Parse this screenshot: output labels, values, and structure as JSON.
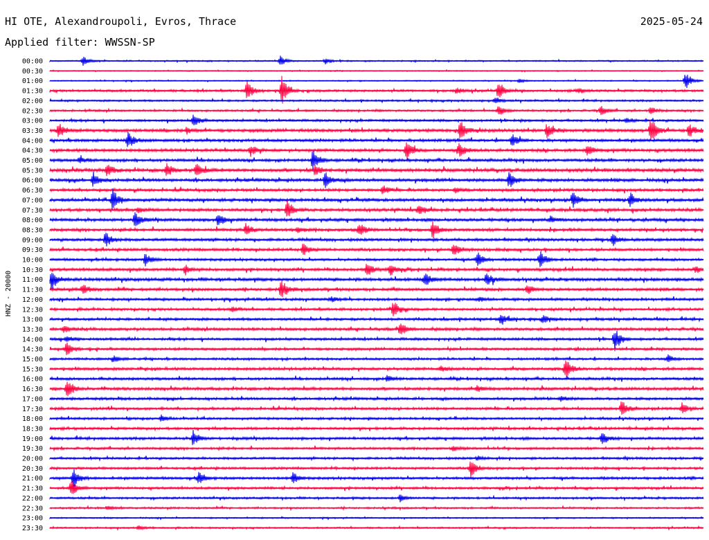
{
  "header": {
    "title": "HI OTE, Alexandroupoli, Evros, Thrace",
    "filter": "Applied filter: WWSSN-SP",
    "date": "2025-05-24"
  },
  "chart_data": {
    "type": "line",
    "title": "HI OTE, Alexandroupoli, Evros, Thrace",
    "subtitle": "Applied filter: WWSSN-SP",
    "date": "2025-05-24",
    "ylabel": "HNZ - 20000",
    "row_labels": [
      "00:00",
      "00:30",
      "01:00",
      "01:30",
      "02:00",
      "02:30",
      "03:00",
      "03:30",
      "04:00",
      "04:30",
      "05:00",
      "05:30",
      "06:00",
      "06:30",
      "07:00",
      "07:30",
      "08:00",
      "08:30",
      "09:00",
      "09:30",
      "10:00",
      "10:30",
      "11:00",
      "11:30",
      "12:00",
      "12:30",
      "13:00",
      "13:30",
      "14:00",
      "14:30",
      "15:00",
      "15:30",
      "16:00",
      "16:30",
      "17:00",
      "17:30",
      "18:00",
      "18:30",
      "19:00",
      "19:30",
      "20:00",
      "20:30",
      "21:00",
      "21:30",
      "22:00",
      "22:30",
      "23:00",
      "23:30"
    ],
    "colors": [
      "#0000ee",
      "#ff0040"
    ],
    "noise": [
      0.25,
      0.18,
      0.2,
      0.45,
      0.35,
      0.4,
      0.45,
      0.6,
      0.55,
      0.6,
      0.55,
      0.65,
      0.6,
      0.55,
      0.6,
      0.6,
      0.6,
      0.55,
      0.55,
      0.55,
      0.5,
      0.55,
      0.6,
      0.55,
      0.5,
      0.5,
      0.5,
      0.55,
      0.5,
      0.5,
      0.45,
      0.55,
      0.5,
      0.55,
      0.5,
      0.5,
      0.45,
      0.5,
      0.5,
      0.45,
      0.45,
      0.45,
      0.5,
      0.45,
      0.4,
      0.35,
      0.25,
      0.3
    ],
    "events": [
      [
        [
          120,
          1.0
        ],
        [
          405,
          1.2
        ],
        [
          470,
          0.6
        ]
      ],
      [],
      [
        [
          990,
          2.0
        ],
        [
          750,
          0.4
        ]
      ],
      [
        [
          357,
          2.2
        ],
        [
          407,
          3.2
        ],
        [
          720,
          1.8
        ],
        [
          660,
          0.6
        ],
        [
          835,
          0.6
        ]
      ],
      [
        [
          715,
          0.6
        ]
      ],
      [
        [
          720,
          1.2
        ],
        [
          868,
          1.0
        ],
        [
          940,
          0.8
        ]
      ],
      [
        [
          280,
          1.5
        ],
        [
          905,
          0.5
        ]
      ],
      [
        [
          85,
          1.8
        ],
        [
          665,
          2.2
        ],
        [
          790,
          1.5
        ],
        [
          940,
          3.0
        ],
        [
          995,
          1.5
        ],
        [
          270,
          0.6
        ]
      ],
      [
        [
          185,
          1.8
        ],
        [
          740,
          1.5
        ]
      ],
      [
        [
          362,
          1.2
        ],
        [
          587,
          2.0
        ],
        [
          663,
          1.5
        ],
        [
          848,
          1.2
        ]
      ],
      [
        [
          452,
          2.2
        ],
        [
          115,
          0.6
        ]
      ],
      [
        [
          155,
          1.3
        ],
        [
          240,
          1.5
        ],
        [
          284,
          1.5
        ],
        [
          455,
          1.2
        ]
      ],
      [
        [
          135,
          1.6
        ],
        [
          470,
          1.8
        ],
        [
          735,
          2.0
        ]
      ],
      [
        [
          553,
          1.0
        ],
        [
          658,
          0.5
        ]
      ],
      [
        [
          163,
          2.5
        ],
        [
          828,
          1.8
        ],
        [
          910,
          1.5
        ]
      ],
      [
        [
          415,
          2.2
        ],
        [
          605,
          1.2
        ],
        [
          200,
          0.6
        ]
      ],
      [
        [
          195,
          1.6
        ],
        [
          315,
          1.4
        ],
        [
          795,
          0.6
        ]
      ],
      [
        [
          355,
          1.5
        ],
        [
          519,
          1.5
        ],
        [
          625,
          1.8
        ],
        [
          430,
          0.6
        ]
      ],
      [
        [
          153,
          1.8
        ],
        [
          885,
          1.3
        ]
      ],
      [
        [
          438,
          1.4
        ],
        [
          655,
          1.4
        ]
      ],
      [
        [
          210,
          1.4
        ],
        [
          690,
          1.6
        ],
        [
          780,
          2.2
        ]
      ],
      [
        [
          268,
          1.0
        ],
        [
          530,
          1.5
        ],
        [
          564,
          1.3
        ],
        [
          1005,
          0.8
        ]
      ],
      [
        [
          74,
          2.2
        ],
        [
          614,
          1.5
        ],
        [
          703,
          1.5
        ]
      ],
      [
        [
          120,
          1.3
        ],
        [
          406,
          2.2
        ],
        [
          762,
          1.0
        ]
      ],
      [
        [
          478,
          0.6
        ],
        [
          692,
          0.6
        ]
      ],
      [
        [
          568,
          2.0
        ],
        [
          335,
          0.6
        ]
      ],
      [
        [
          723,
          1.4
        ],
        [
          785,
          0.8
        ]
      ],
      [
        [
          578,
          1.5
        ],
        [
          92,
          0.8
        ]
      ],
      [
        [
          888,
          2.5
        ],
        [
          96,
          0.6
        ]
      ],
      [
        [
          96,
          1.5
        ]
      ],
      [
        [
          165,
          0.8
        ],
        [
          965,
          0.8
        ]
      ],
      [
        [
          817,
          2.3
        ],
        [
          637,
          0.6
        ]
      ],
      [
        [
          560,
          0.8
        ]
      ],
      [
        [
          97,
          2.3
        ],
        [
          690,
          0.6
        ]
      ],
      [
        [
          810,
          0.6
        ]
      ],
      [
        [
          898,
          1.8
        ],
        [
          985,
          1.2
        ]
      ],
      [
        [
          233,
          0.6
        ]
      ],
      [],
      [
        [
          279,
          1.7
        ],
        [
          870,
          1.3
        ]
      ],
      [
        [
          655,
          0.5
        ]
      ],
      [
        [
          690,
          0.5
        ]
      ],
      [
        [
          680,
          2.0
        ]
      ],
      [
        [
          106,
          2.3
        ],
        [
          287,
          1.3
        ],
        [
          423,
          1.2
        ]
      ],
      [
        [
          103,
          2.0
        ]
      ],
      [
        [
          578,
          0.8
        ]
      ],
      [
        [
          155,
          0.5
        ]
      ],
      [],
      [
        [
          200,
          0.5
        ]
      ]
    ]
  }
}
